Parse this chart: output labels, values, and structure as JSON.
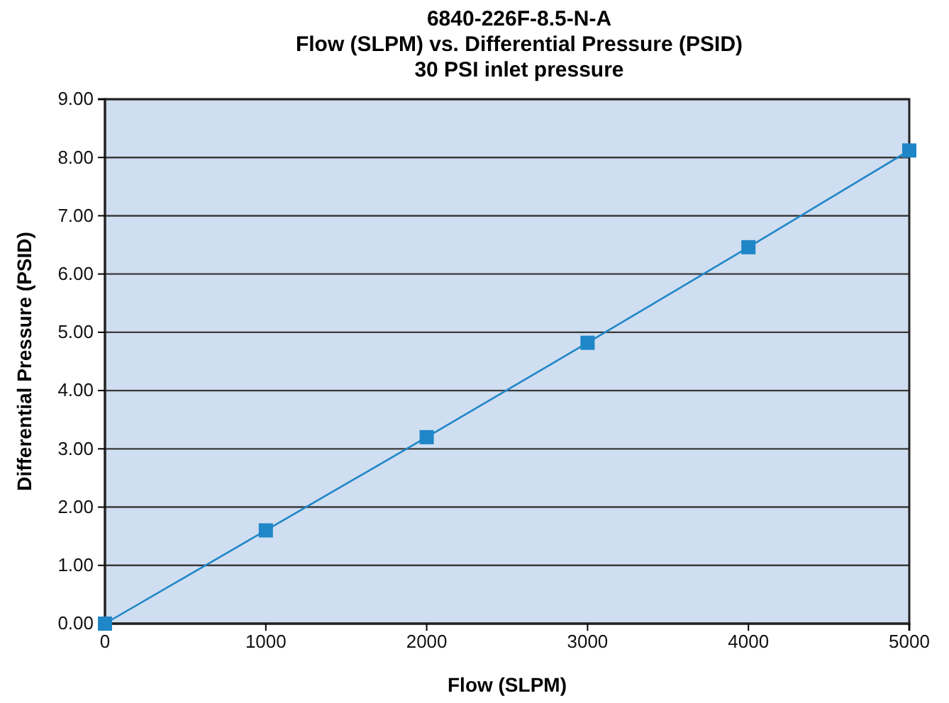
{
  "chart_data": {
    "type": "line",
    "title": "6840-226F-8.5-N-A",
    "subtitle": "Flow (SLPM) vs. Differential Pressure (PSID)\n30 PSI inlet pressure",
    "xlabel": "Flow (SLPM)",
    "ylabel": "Differential Pressure (PSID)",
    "x": [
      0,
      1000,
      2000,
      3000,
      4000,
      5000
    ],
    "series": [
      {
        "color": "#1f86c8",
        "values": [
          0,
          1.6,
          3.2,
          4.82,
          6.46,
          8.12
        ]
      }
    ],
    "xlim": [
      0,
      5000
    ],
    "xticks": [
      0,
      1000,
      2000,
      3000,
      4000,
      5000
    ],
    "ylim": [
      0,
      9
    ],
    "yticks": [
      {
        "value": 0,
        "label": "0.00"
      },
      {
        "value": 1,
        "label": "1.00"
      },
      {
        "value": 2,
        "label": "2.00"
      },
      {
        "value": 3,
        "label": "3.00"
      },
      {
        "value": 4,
        "label": "4.00"
      },
      {
        "value": 5,
        "label": "5.00"
      },
      {
        "value": 6,
        "label": "6.00"
      },
      {
        "value": 7,
        "label": "7.00"
      },
      {
        "value": 8,
        "label": "8.00"
      },
      {
        "value": 9,
        "label": "9.00"
      }
    ],
    "grid": "y",
    "marker": "square",
    "line_style": "solid"
  }
}
